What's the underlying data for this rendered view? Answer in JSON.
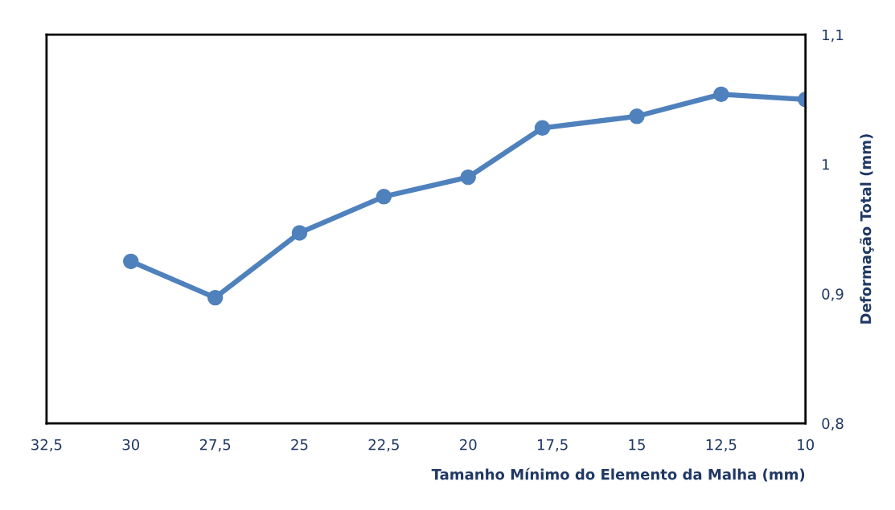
{
  "chart_data": {
    "type": "line",
    "xlabel": "Tamanho Mínimo do Elemento da Malha (mm)",
    "ylabel": "Deformação Total (mm)",
    "x": [
      30,
      27.5,
      25,
      22.5,
      20,
      17.8,
      15,
      12.5,
      10
    ],
    "series": [
      {
        "color": "#4f81bd",
        "values": [
          0.925,
          0.897,
          0.947,
          0.975,
          0.99,
          1.028,
          1.037,
          1.054,
          1.05
        ]
      }
    ],
    "xlim": [
      32.5,
      10
    ],
    "xticks": [
      {
        "value": 32.5,
        "label": "32,5"
      },
      30,
      {
        "value": 27.5,
        "label": "27,5"
      },
      25,
      {
        "value": 22.5,
        "label": "22,5"
      },
      20,
      {
        "value": 17.5,
        "label": "17,5"
      },
      15,
      {
        "value": 12.5,
        "label": "12,5"
      },
      10
    ],
    "ylim": [
      0.8,
      1.1
    ],
    "yticks": [
      {
        "value": 0.8,
        "label": "0,8"
      },
      {
        "value": 0.9,
        "label": "0,9"
      },
      1,
      {
        "value": 1.1,
        "label": "1,1"
      }
    ],
    "marker": "circle",
    "line_style": "solid",
    "grid": false,
    "legend": false
  }
}
